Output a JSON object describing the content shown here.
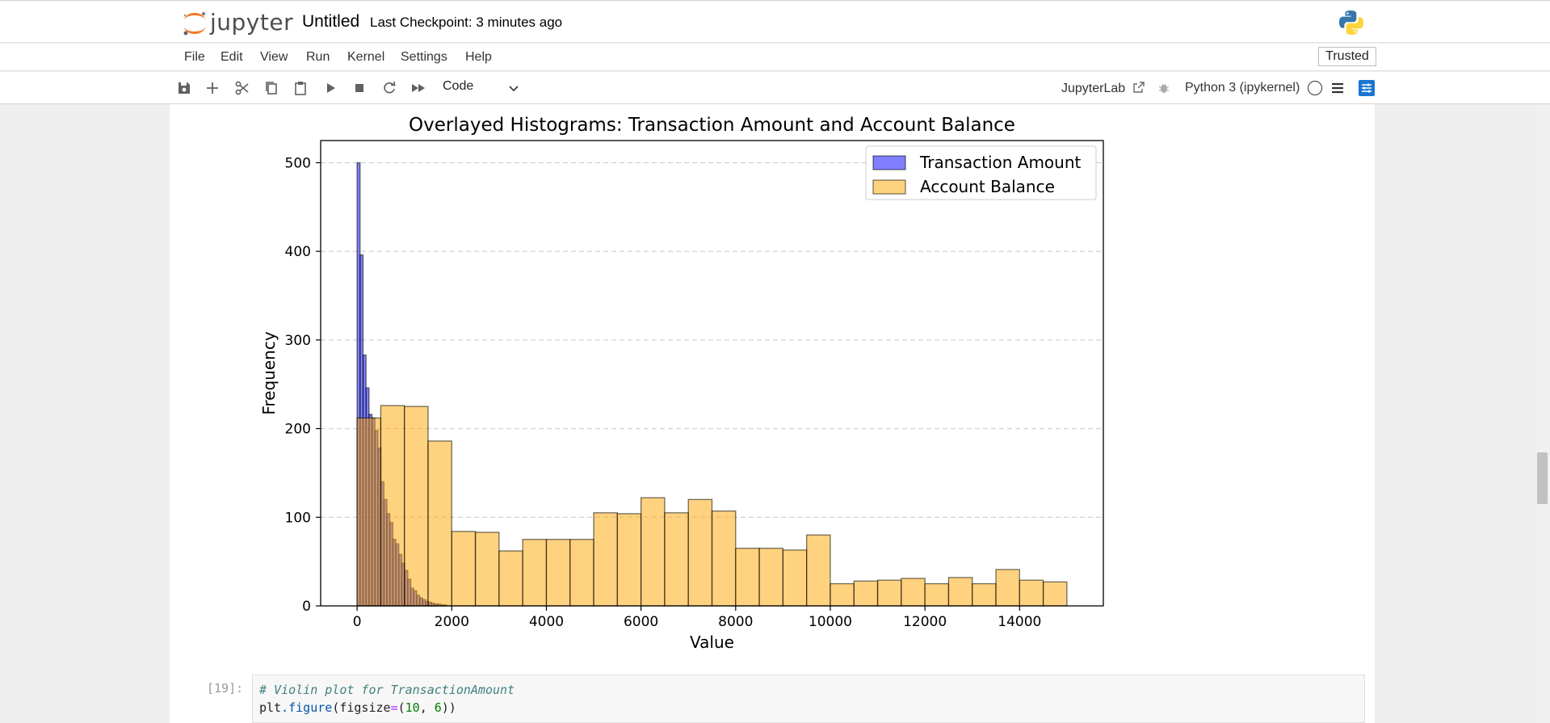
{
  "header": {
    "logo_text": "jupyter",
    "doc_title": "Untitled",
    "checkpoint": "Last Checkpoint: 3 minutes ago"
  },
  "menu": {
    "items": [
      "File",
      "Edit",
      "View",
      "Run",
      "Kernel",
      "Settings",
      "Help"
    ],
    "trusted": "Trusted"
  },
  "toolbar": {
    "cell_type": "Code",
    "jupyterlab_link": "JupyterLab",
    "kernel_name": "Python 3 (ipykernel)",
    "icons": [
      "save-icon",
      "add-icon",
      "cut-icon",
      "copy-icon",
      "paste-icon",
      "run-icon",
      "stop-icon",
      "restart-icon",
      "fast-forward-icon"
    ]
  },
  "chart_data": {
    "type": "bar",
    "title": "Overlayed Histograms: Transaction Amount and Account Balance",
    "xlabel": "Value",
    "ylabel": "Frequency",
    "xlim": [
      -770,
      15770
    ],
    "ylim": [
      0,
      525
    ],
    "xticks": [
      "0",
      "2000",
      "4000",
      "6000",
      "8000",
      "10000",
      "12000",
      "14000"
    ],
    "yticks": [
      "0",
      "100",
      "200",
      "300",
      "400",
      "500"
    ],
    "grid": "y-dashed",
    "legend_position": "top-right",
    "series": [
      {
        "name": "Transaction Amount",
        "color": "#0000ff",
        "alpha": 0.5,
        "bin_start": 0,
        "bin_width": 63,
        "values": [
          500,
          396,
          283,
          246,
          216,
          212,
          198,
          178,
          140,
          120,
          104,
          94,
          75,
          70,
          58,
          48,
          40,
          30,
          20,
          17,
          12,
          9,
          7,
          5,
          4,
          3,
          2,
          2,
          1,
          1
        ]
      },
      {
        "name": "Account Balance",
        "color": "#ffa500",
        "alpha": 0.5,
        "bin_start": 0,
        "bin_width": 500,
        "values": [
          212,
          226,
          225,
          186,
          84,
          83,
          62,
          75,
          75,
          75,
          105,
          104,
          122,
          105,
          120,
          107,
          65,
          65,
          63,
          80,
          25,
          28,
          29,
          31,
          25,
          32,
          25,
          41,
          29,
          27
        ]
      }
    ]
  },
  "code": {
    "prompt": "[19]:",
    "line1_comment": "# Violin plot for TransactionAmount",
    "line2_a": "plt",
    "line2_b": ".figure",
    "line2_c": "(figsize",
    "line2_d": "=",
    "line2_e": "(",
    "line2_f": "10",
    "line2_g": ", ",
    "line2_h": "6",
    "line2_i": "))"
  }
}
